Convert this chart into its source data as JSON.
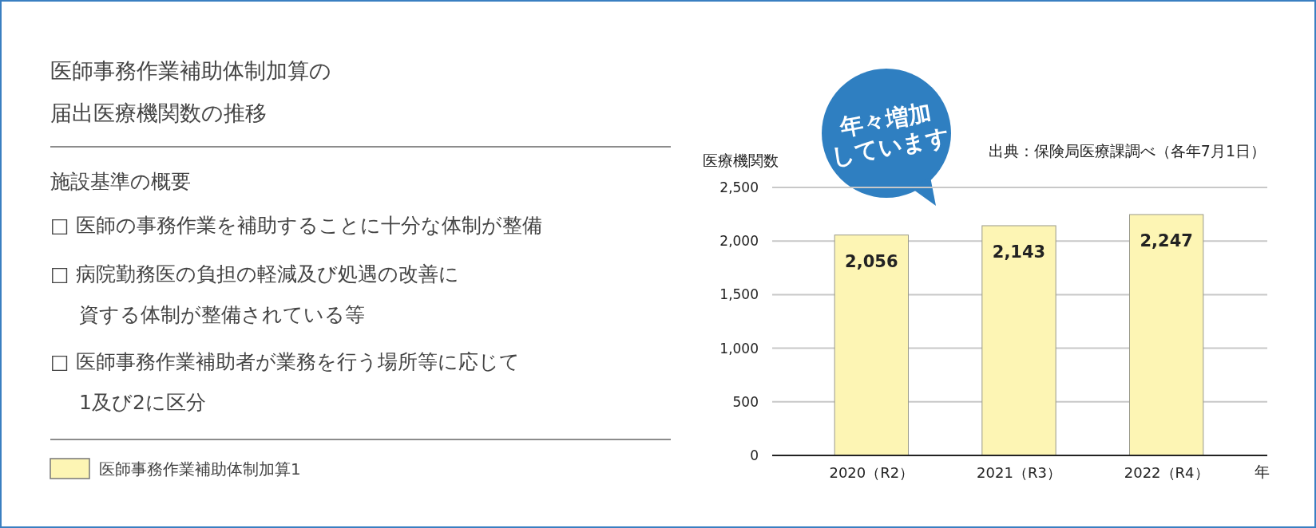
{
  "chart_data": {
    "type": "bar",
    "title": "医師事務作業補助体制加算の届出医療機関数の推移",
    "ylabel": "医療機関数",
    "xlabel": "年",
    "categories": [
      "2020（R2）",
      "2021（R3）",
      "2022（R4）"
    ],
    "series": [
      {
        "name": "医師事務作業補助体制加算1",
        "color": "#fdf5b4",
        "values": [
          2056,
          2143,
          2247
        ]
      }
    ],
    "ylim": [
      0,
      2500
    ],
    "yticks": [
      0,
      500,
      {
        "value": 1000,
        "label": "1,000"
      },
      {
        "value": 1500,
        "label": "1,500"
      },
      {
        "value": 2000,
        "label": "2,000"
      },
      {
        "value": 2500,
        "label": "2,500"
      }
    ],
    "grid": "y",
    "legend": "bottom left",
    "value_labels": [
      "2,056",
      "2,143",
      "2,247"
    ],
    "annotations": [
      "施設基準の概要",
      "□ 医師の事務作業を補助することに十分な体制が整備",
      "□ 病院勤務医の負担の軽減及び処遇の改善に",
      "資する体制が整備されている等",
      "□ 医師事務作業補助者が業務を行う場所等に応じて",
      "1及び2に区分",
      "出典：保険局医療課調べ（各年7月1日）",
      "年々増加\nしています"
    ]
  }
}
